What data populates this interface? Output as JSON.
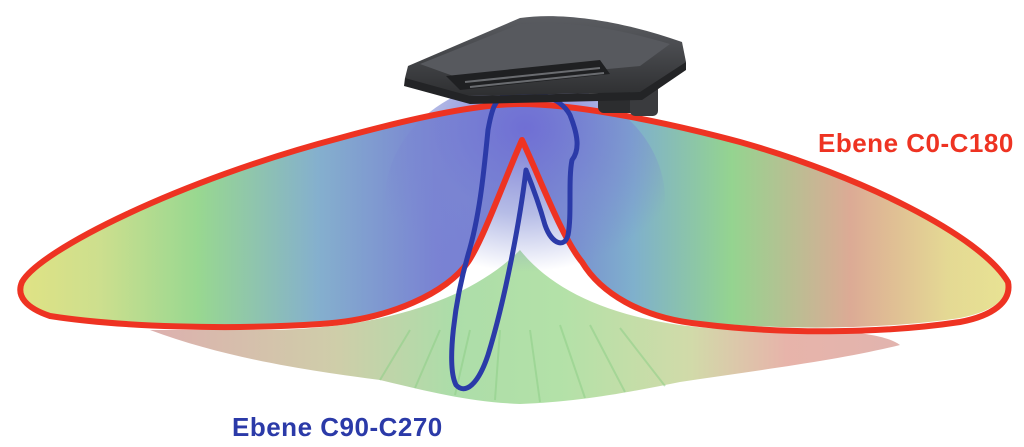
{
  "labels": {
    "plane_c0_c180": "Ebene C0-C180",
    "plane_c90_c270": "Ebene C90-C270"
  },
  "colors": {
    "plane_c0_c180": "#ee3322",
    "plane_c90_c270": "#2b3aa8",
    "luminaire_body": "#3c3c3e",
    "luminaire_top": "#54565a"
  },
  "icons": {
    "luminaire": "floodlight-icon"
  }
}
